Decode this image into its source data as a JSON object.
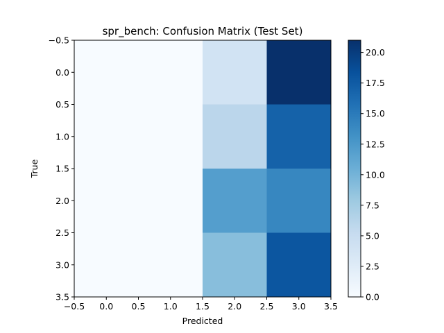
{
  "chart_data": {
    "type": "heatmap",
    "title": "spr_bench: Confusion Matrix (Test Set)",
    "xlabel": "Predicted",
    "ylabel": "True",
    "x_ticks": [
      "−0.5",
      "0.0",
      "0.5",
      "1.0",
      "1.5",
      "2.0",
      "2.5",
      "3.0",
      "3.5"
    ],
    "y_ticks": [
      "−0.5",
      "0.0",
      "0.5",
      "1.0",
      "1.5",
      "2.0",
      "2.5",
      "3.0",
      "3.5"
    ],
    "xlim": [
      -0.5,
      3.5
    ],
    "ylim": [
      3.5,
      -0.5
    ],
    "matrix": [
      [
        0,
        0,
        4,
        21
      ],
      [
        0,
        0,
        6,
        17
      ],
      [
        0,
        0,
        12,
        14
      ],
      [
        0,
        0,
        9,
        18
      ]
    ],
    "colormap": "Blues",
    "vmin": 0,
    "vmax": 21,
    "colorbar_ticks": [
      "0.0",
      "2.5",
      "5.0",
      "7.5",
      "10.0",
      "12.5",
      "15.0",
      "17.5",
      "20.0"
    ],
    "colorbar_tick_values": [
      0,
      2.5,
      5,
      7.5,
      10,
      12.5,
      15,
      17.5,
      20
    ],
    "grid": false
  }
}
